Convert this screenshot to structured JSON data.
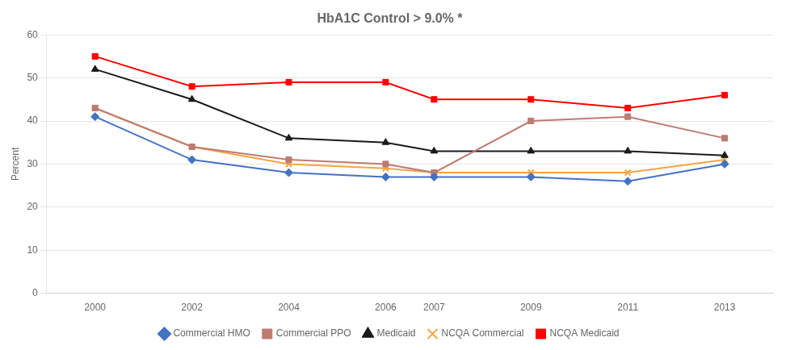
{
  "chart_data": {
    "type": "line",
    "title": "HbA1C Control > 9.0% *",
    "y_label": "Percent",
    "x": [
      2000,
      2002,
      2004,
      2006,
      2007,
      2009,
      2011,
      2013
    ],
    "series": [
      {
        "name": "Commercial HMO",
        "color": "#4472C4",
        "marker": "diamond",
        "values": [
          41,
          31,
          28,
          27,
          27,
          27,
          26,
          30
        ]
      },
      {
        "name": "Commercial PPO",
        "color": "#BE7B72",
        "marker": "square",
        "values": [
          43,
          34,
          31,
          30,
          28,
          40,
          41,
          36
        ]
      },
      {
        "name": "Medicaid",
        "color": "#1A1A1A",
        "marker": "triangle",
        "values": [
          52,
          45,
          36,
          35,
          33,
          33,
          33,
          32
        ]
      },
      {
        "name": "NCQA Commercial",
        "color": "#F4A540",
        "marker": "x",
        "values": [
          43,
          34,
          30,
          29,
          28,
          28,
          28,
          31
        ]
      },
      {
        "name": "NCQA Medicaid",
        "color": "#FF0000",
        "marker": "square",
        "values": [
          55,
          48,
          49,
          49,
          45,
          45,
          43,
          46
        ]
      }
    ],
    "xlim": [
      1999,
      2014
    ],
    "xticks": [
      2000,
      2002,
      2004,
      2006,
      2007,
      2009,
      2011,
      2013
    ],
    "ylim": [
      0,
      60
    ],
    "yticks": [
      0,
      10,
      20,
      30,
      40,
      50,
      60
    ],
    "grid": "y",
    "legend": "bottom"
  }
}
